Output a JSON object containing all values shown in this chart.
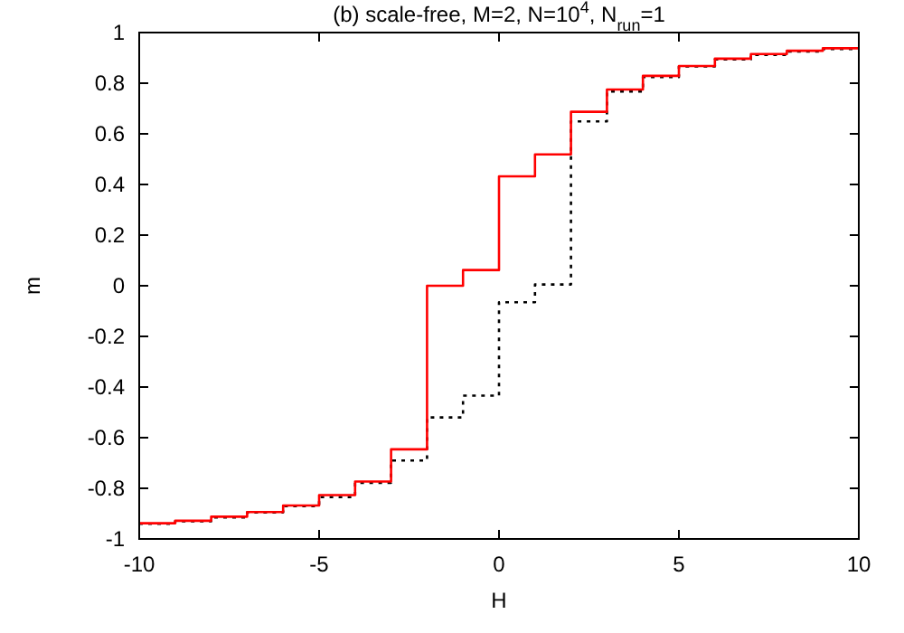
{
  "chart_data": {
    "type": "step",
    "title": "(b) scale-free, M=2, N=10$^{4}$, N$_{run}$=1",
    "xlabel": "H",
    "ylabel": "m",
    "x": [
      -10,
      -9,
      -8,
      -7,
      -6,
      -5,
      -4,
      -3,
      -2,
      -1,
      0,
      1,
      2,
      3,
      4,
      5,
      6,
      7,
      8,
      9,
      10
    ],
    "xlim": [
      -10,
      10
    ],
    "xticks": [
      -10,
      -5,
      0,
      5,
      10
    ],
    "ylim": [
      -1,
      1
    ],
    "yticks": [
      -1,
      {
        "value": -0.8,
        "label": "-0.8"
      },
      {
        "value": -0.6,
        "label": "-0.6"
      },
      {
        "value": -0.4,
        "label": "-0.4"
      },
      {
        "value": -0.2,
        "label": "-0.2"
      },
      0,
      {
        "value": 0.2,
        "label": "0.2"
      },
      {
        "value": 0.4,
        "label": "0.4"
      },
      {
        "value": 0.6,
        "label": "0.6"
      },
      {
        "value": 0.8,
        "label": "0.8"
      },
      1
    ],
    "series": [
      {
        "color": "#000000",
        "line_style": "dotted",
        "values": [
          -0.94,
          -0.93,
          -0.915,
          -0.895,
          -0.87,
          -0.835,
          -0.778,
          -0.69,
          -0.52,
          -0.434,
          -0.065,
          0.005,
          0.649,
          0.767,
          0.824,
          0.866,
          0.894,
          0.912,
          0.925,
          0.935,
          0.935
        ]
      },
      {
        "color": "#ff0000",
        "line_style": "solid",
        "values": [
          -0.938,
          -0.928,
          -0.912,
          -0.894,
          -0.868,
          -0.827,
          -0.773,
          -0.646,
          0,
          0.062,
          0.432,
          0.519,
          0.687,
          0.775,
          0.829,
          0.868,
          0.897,
          0.915,
          0.928,
          0.938,
          0.938
        ]
      }
    ]
  }
}
